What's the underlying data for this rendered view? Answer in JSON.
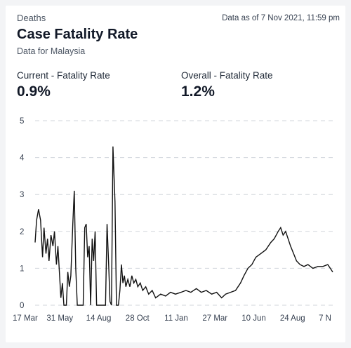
{
  "header": {
    "section": "Deaths",
    "as_of": "Data as of 7 Nov 2021, 11:59 pm",
    "title": "Case Fatality Rate",
    "subtitle": "Data for Malaysia"
  },
  "metrics": [
    {
      "label": "Current - Fatality Rate",
      "value": "0.9%"
    },
    {
      "label": "Overall - Fatality Rate",
      "value": "1.2%"
    }
  ],
  "colors": {
    "line": "#111111",
    "grid": "#d1d5db"
  },
  "chart_data": {
    "type": "line",
    "title": "",
    "xlabel": "",
    "ylabel": "",
    "ylim": [
      0,
      5
    ],
    "y_ticks": [
      "0",
      "1",
      "2",
      "3",
      "4",
      "5"
    ],
    "x_ticks": [
      "17 Mar",
      "31 May",
      "14 Aug",
      "28 Oct",
      "11 Jan",
      "27 Mar",
      "10 Jun",
      "24 Aug",
      "7 N"
    ],
    "x_range": [
      "2020-03-17",
      "2021-11-07"
    ],
    "grid": "horizontal dashed",
    "legend": "none",
    "series": [
      {
        "values": [
          [
            "2020-03-17",
            1.7
          ],
          [
            "2020-03-20",
            2.3
          ],
          [
            "2020-03-24",
            2.6
          ],
          [
            "2020-03-28",
            2.3
          ],
          [
            "2020-04-01",
            1.3
          ],
          [
            "2020-04-04",
            2.1
          ],
          [
            "2020-04-08",
            1.4
          ],
          [
            "2020-04-11",
            1.8
          ],
          [
            "2020-04-14",
            1.2
          ],
          [
            "2020-04-18",
            1.9
          ],
          [
            "2020-04-22",
            1.6
          ],
          [
            "2020-04-25",
            2.0
          ],
          [
            "2020-04-29",
            1.1
          ],
          [
            "2020-05-02",
            1.6
          ],
          [
            "2020-05-05",
            0.9
          ],
          [
            "2020-05-08",
            0.2
          ],
          [
            "2020-05-11",
            0.6
          ],
          [
            "2020-05-14",
            0.0
          ],
          [
            "2020-05-19",
            0.0
          ],
          [
            "2020-05-22",
            0.9
          ],
          [
            "2020-05-25",
            0.5
          ],
          [
            "2020-05-28",
            0.8
          ],
          [
            "2020-06-01",
            2.2
          ],
          [
            "2020-06-04",
            3.1
          ],
          [
            "2020-06-07",
            1.0
          ],
          [
            "2020-06-10",
            0.0
          ],
          [
            "2020-06-18",
            0.0
          ],
          [
            "2020-06-22",
            0.0
          ],
          [
            "2020-06-25",
            2.1
          ],
          [
            "2020-06-28",
            2.2
          ],
          [
            "2020-07-01",
            1.3
          ],
          [
            "2020-07-04",
            1.6
          ],
          [
            "2020-07-07",
            0.0
          ],
          [
            "2020-07-10",
            1.8
          ],
          [
            "2020-07-13",
            1.2
          ],
          [
            "2020-07-16",
            2.0
          ],
          [
            "2020-07-19",
            0.0
          ],
          [
            "2020-07-24",
            0.0
          ],
          [
            "2020-07-27",
            0.0
          ],
          [
            "2020-08-02",
            0.0
          ],
          [
            "2020-08-06",
            0.0
          ],
          [
            "2020-08-09",
            2.2
          ],
          [
            "2020-08-12",
            1.2
          ],
          [
            "2020-08-15",
            0.1
          ],
          [
            "2020-08-18",
            0.0
          ],
          [
            "2020-08-21",
            4.3
          ],
          [
            "2020-08-25",
            2.8
          ],
          [
            "2020-08-28",
            0.0
          ],
          [
            "2020-09-01",
            0.0
          ],
          [
            "2020-09-04",
            0.4
          ],
          [
            "2020-09-07",
            1.1
          ],
          [
            "2020-09-10",
            0.6
          ],
          [
            "2020-09-13",
            0.8
          ],
          [
            "2020-09-16",
            0.5
          ],
          [
            "2020-09-20",
            0.7
          ],
          [
            "2020-09-24",
            0.5
          ],
          [
            "2020-09-28",
            0.8
          ],
          [
            "2020-10-02",
            0.6
          ],
          [
            "2020-10-06",
            0.7
          ],
          [
            "2020-10-10",
            0.5
          ],
          [
            "2020-10-15",
            0.6
          ],
          [
            "2020-10-20",
            0.4
          ],
          [
            "2020-10-26",
            0.5
          ],
          [
            "2020-11-01",
            0.3
          ],
          [
            "2020-11-08",
            0.4
          ],
          [
            "2020-11-15",
            0.2
          ],
          [
            "2020-11-25",
            0.3
          ],
          [
            "2020-12-05",
            0.25
          ],
          [
            "2020-12-15",
            0.35
          ],
          [
            "2020-12-25",
            0.3
          ],
          [
            "2021-01-05",
            0.35
          ],
          [
            "2021-01-15",
            0.4
          ],
          [
            "2021-01-25",
            0.35
          ],
          [
            "2021-02-05",
            0.45
          ],
          [
            "2021-02-15",
            0.35
          ],
          [
            "2021-02-25",
            0.4
          ],
          [
            "2021-03-08",
            0.3
          ],
          [
            "2021-03-18",
            0.35
          ],
          [
            "2021-03-28",
            0.2
          ],
          [
            "2021-04-05",
            0.3
          ],
          [
            "2021-04-15",
            0.35
          ],
          [
            "2021-04-25",
            0.4
          ],
          [
            "2021-05-05",
            0.6
          ],
          [
            "2021-05-12",
            0.8
          ],
          [
            "2021-05-20",
            1.0
          ],
          [
            "2021-05-28",
            1.1
          ],
          [
            "2021-06-05",
            1.3
          ],
          [
            "2021-06-15",
            1.4
          ],
          [
            "2021-06-25",
            1.5
          ],
          [
            "2021-07-05",
            1.7
          ],
          [
            "2021-07-12",
            1.8
          ],
          [
            "2021-07-20",
            2.0
          ],
          [
            "2021-07-25",
            2.1
          ],
          [
            "2021-07-30",
            1.9
          ],
          [
            "2021-08-04",
            2.0
          ],
          [
            "2021-08-09",
            1.8
          ],
          [
            "2021-08-14",
            1.6
          ],
          [
            "2021-08-20",
            1.4
          ],
          [
            "2021-08-26",
            1.2
          ],
          [
            "2021-09-02",
            1.1
          ],
          [
            "2021-09-10",
            1.05
          ],
          [
            "2021-09-18",
            1.1
          ],
          [
            "2021-09-28",
            1.0
          ],
          [
            "2021-10-08",
            1.05
          ],
          [
            "2021-10-18",
            1.05
          ],
          [
            "2021-10-28",
            1.1
          ],
          [
            "2021-11-02",
            1.0
          ],
          [
            "2021-11-07",
            0.9
          ]
        ]
      }
    ]
  }
}
